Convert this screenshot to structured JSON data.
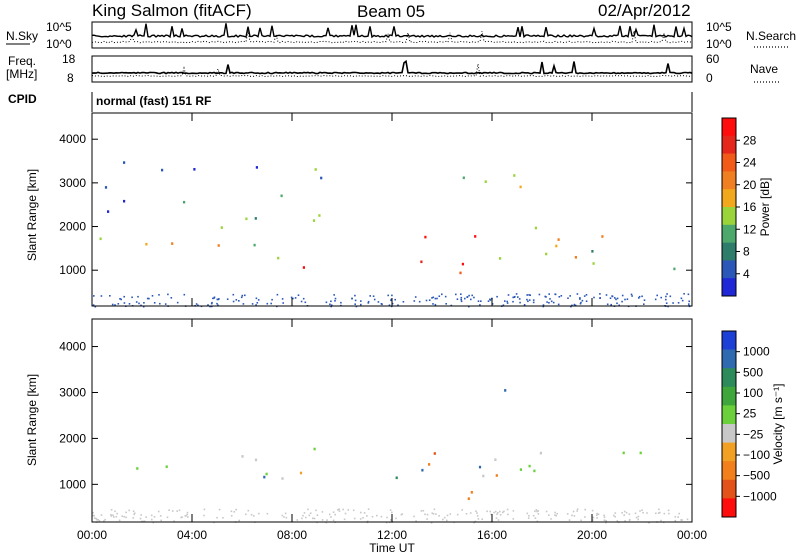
{
  "header": {
    "station": "King Salmon (fitACF)",
    "beam": "Beam 05",
    "date": "02/Apr/2012"
  },
  "aux_panels": {
    "nsky_label": "N.Sky",
    "nsearch_label": "N.Search",
    "freq_label_line1": "Freq.",
    "freq_label_line2": "[MHz]",
    "nave_label": "Nave",
    "cpid_label": "CPID",
    "cpid_value": "normal (fast) 151 RF",
    "noise_ticks_left": [
      "10^5",
      "10^0"
    ],
    "noise_ticks_right": [
      "10^5",
      "10^0"
    ],
    "freq_ticks": [
      "18",
      "8"
    ],
    "nave_ticks": [
      "60",
      "0"
    ]
  },
  "chart_data": [
    {
      "type": "heatmap",
      "name": "power",
      "ylabel": "Slant Range [km]",
      "xlabel": "Time UT",
      "x_ticks": [
        "00:00",
        "04:00",
        "08:00",
        "12:00",
        "16:00",
        "20:00",
        "00:00"
      ],
      "y_ticks": [
        "1000",
        "2000",
        "3000",
        "4000"
      ],
      "ylim": [
        180,
        4600
      ],
      "xlim_hours": [
        0,
        24
      ],
      "colorbar_label": "Power [dB]",
      "colorbar_ticks": [
        "4",
        "8",
        "12",
        "16",
        "20",
        "24",
        "28"
      ],
      "colorbar_colors": [
        "#1f27d6",
        "#2b58b8",
        "#2e7d6b",
        "#4da86b",
        "#9bd33a",
        "#f2a81c",
        "#f07f22",
        "#f25a17",
        "#e5261b",
        "#ff0d0d"
      ],
      "features": [
        {
          "t0": 0.3,
          "t1": 9.0,
          "r0": 1150,
          "r1": 1800,
          "level": 0.55
        },
        {
          "t0": 7.2,
          "t1": 9.0,
          "r0": 950,
          "r1": 1250,
          "level": 0.75
        },
        {
          "t0": 5.2,
          "t1": 6.0,
          "r0": 800,
          "r1": 1200,
          "level": 0.7
        },
        {
          "t0": 12.0,
          "t1": 13.4,
          "r0": 1100,
          "r1": 2100,
          "level": 0.85
        },
        {
          "t0": 13.9,
          "t1": 16.3,
          "r0": 800,
          "r1": 1900,
          "level": 0.9
        },
        {
          "t0": 15.8,
          "t1": 24.0,
          "r0": 1000,
          "r1": 2100,
          "level": 0.45
        },
        {
          "t0": 14.0,
          "t1": 17.3,
          "r0": 2500,
          "r1": 3600,
          "level": 0.4
        },
        {
          "t0": 0.5,
          "t1": 10.0,
          "r0": 2000,
          "r1": 3500,
          "level": 0.25
        }
      ]
    },
    {
      "type": "heatmap",
      "name": "velocity",
      "ylabel": "Slant Range [km]",
      "xlabel": "Time UT",
      "x_ticks": [
        "00:00",
        "04:00",
        "08:00",
        "12:00",
        "16:00",
        "20:00",
        "00:00"
      ],
      "y_ticks": [
        "1000",
        "2000",
        "3000",
        "4000"
      ],
      "ylim": [
        180,
        4600
      ],
      "xlim_hours": [
        0,
        24
      ],
      "colorbar_label": "Velocity [m s⁻¹]",
      "colorbar_ticks": [
        "1000",
        "500",
        "100",
        "25",
        "−25",
        "−100",
        "−500",
        "−1000"
      ],
      "colorbar_colors": [
        "#1c3fd6",
        "#2f6ab0",
        "#2d8a5a",
        "#3fa63b",
        "#6ad13a",
        "#c8c8c8",
        "#f2a024",
        "#f07f1c",
        "#e35218",
        "#ff0d0d"
      ],
      "features": [
        {
          "t0": 0.3,
          "t1": 9.5,
          "r0": 1150,
          "r1": 1800,
          "vel": 0.0
        },
        {
          "t0": 5.4,
          "t1": 5.9,
          "r0": 750,
          "r1": 1150,
          "vel": -0.9
        },
        {
          "t0": 6.3,
          "t1": 7.6,
          "r0": 1000,
          "r1": 1400,
          "vel": 0.6
        },
        {
          "t0": 7.6,
          "t1": 9.2,
          "r0": 1000,
          "r1": 1500,
          "vel": -0.5
        },
        {
          "t0": 12.0,
          "t1": 13.4,
          "r0": 1000,
          "r1": 2000,
          "vel": 0.6
        },
        {
          "t0": 13.2,
          "t1": 16.8,
          "r0": 700,
          "r1": 1900,
          "vel": -0.55
        },
        {
          "t0": 14.2,
          "t1": 15.6,
          "r0": 900,
          "r1": 1600,
          "vel": 0.55
        },
        {
          "t0": 15.6,
          "t1": 24.0,
          "r0": 1100,
          "r1": 2000,
          "vel": 0.0
        },
        {
          "t0": 16.0,
          "t1": 17.2,
          "r0": 2600,
          "r1": 3400,
          "vel": 0.8
        }
      ]
    }
  ]
}
